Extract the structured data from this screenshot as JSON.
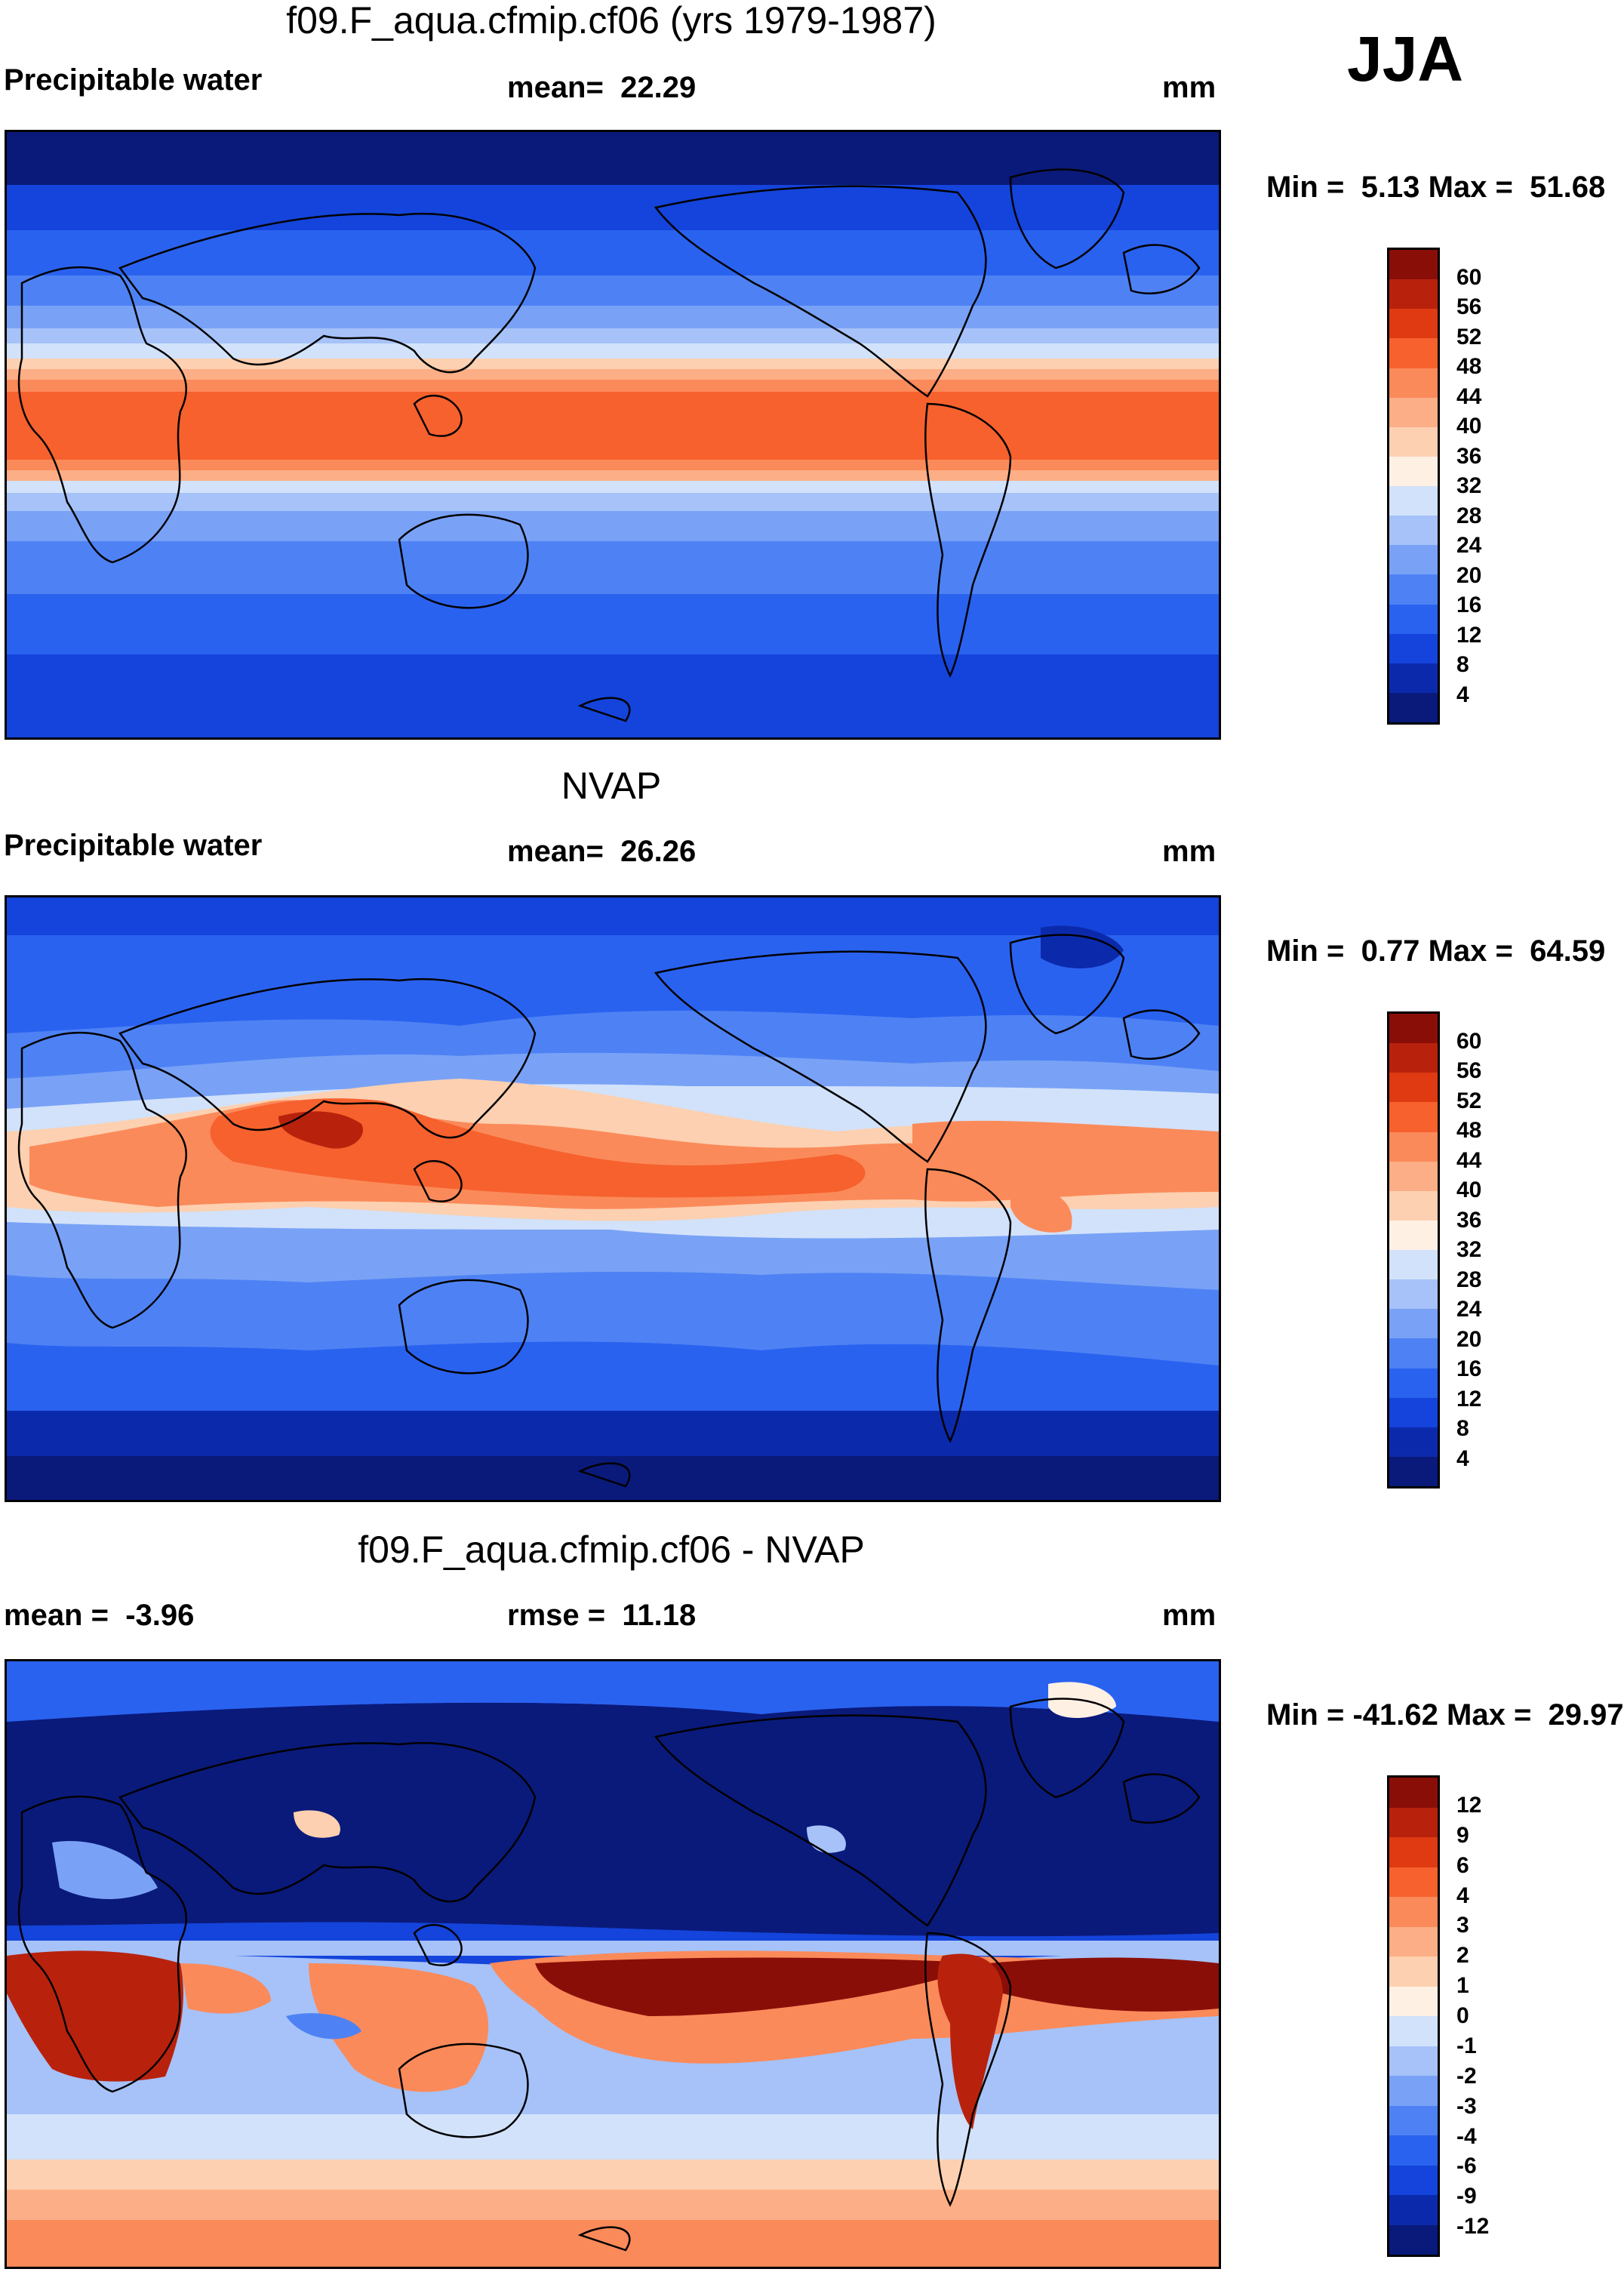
{
  "season": "JJA",
  "colors": {
    "abs_scale": [
      "#0a1a7a",
      "#0b2aab",
      "#1444db",
      "#2a62f0",
      "#4e82f4",
      "#79a2f6",
      "#a6c2f8",
      "#d2e2fa",
      "#fff0e4",
      "#fcd0b0",
      "#fcae86",
      "#fb8a5a",
      "#f6612e",
      "#e03a12",
      "#b8220c",
      "#8a0e08"
    ],
    "diff_scale": [
      "#0a1a7a",
      "#0b2aab",
      "#1444db",
      "#2a62f0",
      "#4e82f4",
      "#79a2f6",
      "#a6c2f8",
      "#d2e2fa",
      "#fff0e4",
      "#fcd0b0",
      "#fcae86",
      "#fb8a5a",
      "#f6612e",
      "#e03a12",
      "#b8220c",
      "#8a0e08"
    ]
  },
  "chart_data": [
    {
      "type": "heatmap",
      "title": "f09.F_aqua.cfmip.cf06 (yrs 1979-1987)",
      "left_label": "Precipitable water",
      "stat_label": "mean=",
      "stat_value": "22.29",
      "units": "mm",
      "min_label": "Min =",
      "min_value": "5.13",
      "max_label": "Max =",
      "max_value": "51.68",
      "colorbar_ticks": [
        "60",
        "56",
        "52",
        "48",
        "44",
        "40",
        "36",
        "32",
        "28",
        "24",
        "20",
        "16",
        "12",
        "8",
        "4"
      ]
    },
    {
      "type": "heatmap",
      "title": "NVAP",
      "left_label": "Precipitable water",
      "stat_label": "mean=",
      "stat_value": "26.26",
      "units": "mm",
      "min_label": "Min =",
      "min_value": "0.77",
      "max_label": "Max =",
      "max_value": "64.59",
      "colorbar_ticks": [
        "60",
        "56",
        "52",
        "48",
        "44",
        "40",
        "36",
        "32",
        "28",
        "24",
        "20",
        "16",
        "12",
        "8",
        "4"
      ]
    },
    {
      "type": "heatmap",
      "title": "f09.F_aqua.cfmip.cf06 - NVAP",
      "left_label": "mean =",
      "left_value": "-3.96",
      "stat_label": "rmse =",
      "stat_value": "11.18",
      "units": "mm",
      "min_label": "Min =",
      "min_value": "-41.62",
      "max_label": "Max =",
      "max_value": "29.97",
      "colorbar_ticks": [
        "12",
        "9",
        "6",
        "4",
        "3",
        "2",
        "1",
        "0",
        "-1",
        "-2",
        "-3",
        "-4",
        "-6",
        "-9",
        "-12"
      ]
    }
  ]
}
